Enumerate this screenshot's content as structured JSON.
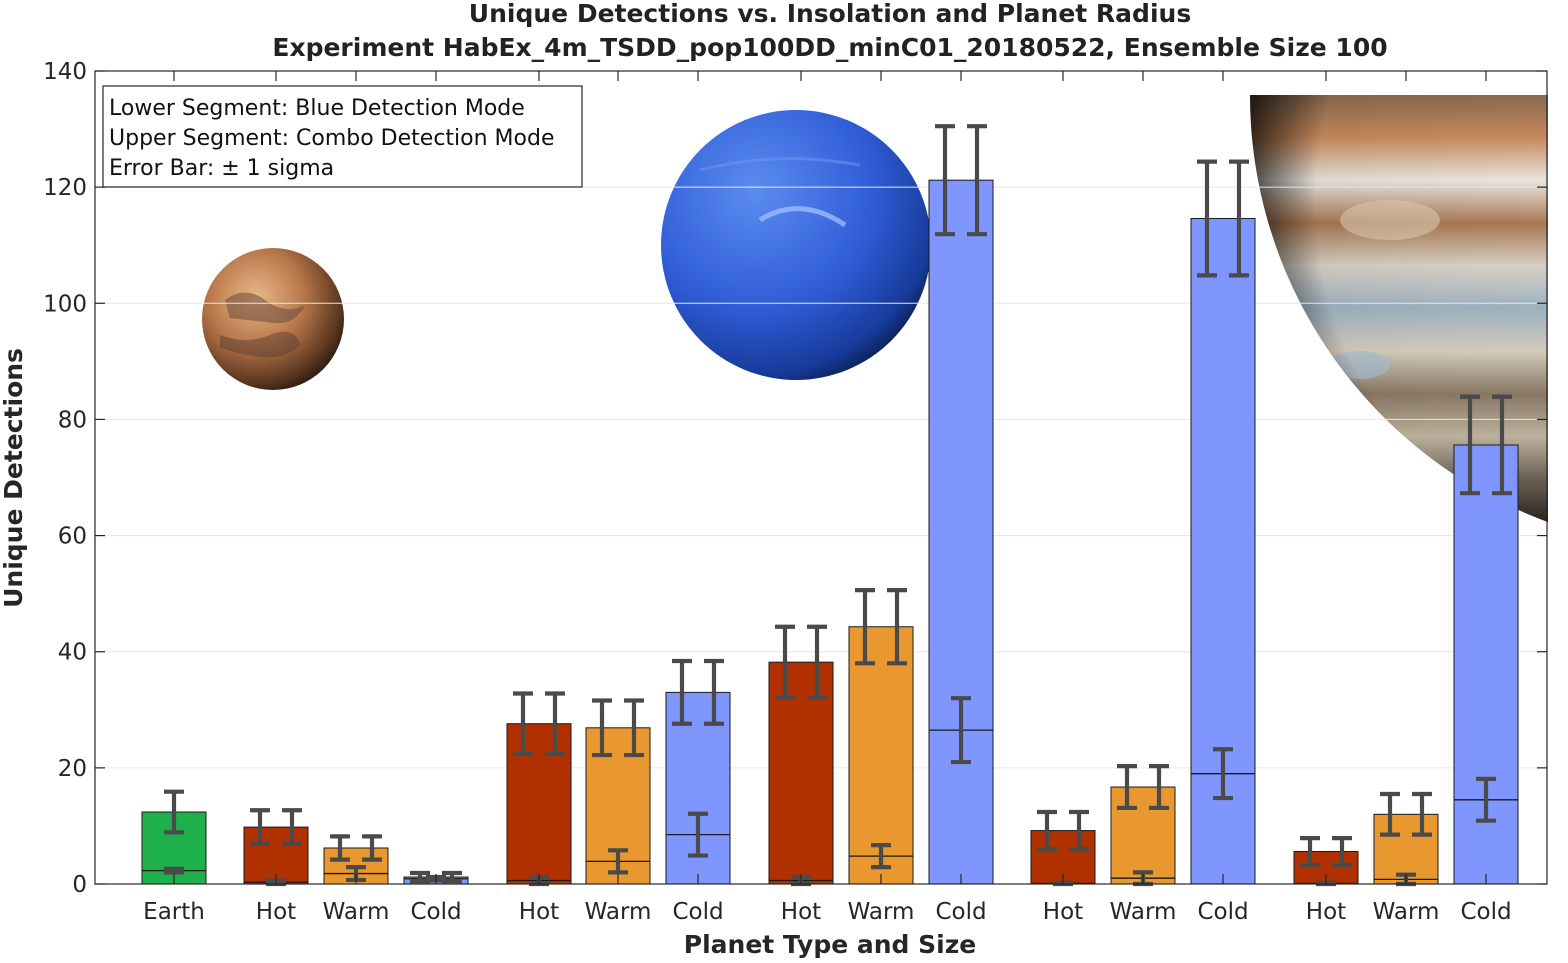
{
  "chart_data": {
    "type": "bar",
    "stacked": true,
    "title": "Unique Detections vs. Insolation and Planet Radius",
    "subtitle": "Experiment HabEx_4m_TSDD_pop100DD_minC01_20180522, Ensemble Size 100",
    "xlabel": "Planet Type and Size",
    "ylabel": "Unique Detections",
    "ylim": [
      0,
      140
    ],
    "yticks": [
      0,
      20,
      40,
      60,
      80,
      100,
      120,
      140
    ],
    "grid": true,
    "legend": {
      "placement": "top-left",
      "lines": [
        "Lower Segment: Blue Detection Mode",
        "Upper Segment: Combo Detection Mode",
        "Error Bar: ± 1 sigma"
      ]
    },
    "colors": {
      "earth": "#1eb04a",
      "hot": "#b03000",
      "warm": "#e8982e",
      "cold": "#7f96ff",
      "errorbar": "#4a4a4a",
      "grid": "#e6e6e6",
      "axis": "#262626"
    },
    "planet_images": [
      "earth-like-rocky-planet",
      "neptune",
      "jupiter"
    ],
    "categories": [
      "Earth",
      "Hot",
      "Warm",
      "Cold",
      "Hot",
      "Warm",
      "Cold",
      "Hot",
      "Warm",
      "Cold",
      "Hot",
      "Warm",
      "Cold",
      "Hot",
      "Warm",
      "Cold"
    ],
    "temperature_class": [
      "earth",
      "hot",
      "warm",
      "cold",
      "hot",
      "warm",
      "cold",
      "hot",
      "warm",
      "cold",
      "hot",
      "warm",
      "cold",
      "hot",
      "warm",
      "cold"
    ],
    "series": [
      {
        "name": "Blue Detection Mode",
        "values": [
          2.3,
          0.3,
          1.8,
          0.9,
          0.6,
          3.9,
          8.5,
          0.6,
          4.8,
          26.5,
          0.1,
          1.0,
          19.0,
          0.1,
          0.8,
          14.5
        ],
        "error": [
          0.3,
          0.3,
          1.1,
          0.3,
          0.6,
          1.9,
          3.6,
          0.6,
          1.9,
          5.5,
          0.1,
          1.0,
          4.2,
          0.1,
          0.8,
          3.6
        ]
      },
      {
        "name": "Combo Detection Mode",
        "values": [
          12.4,
          9.8,
          6.2,
          1.2,
          27.6,
          26.9,
          33.0,
          38.2,
          44.3,
          121.2,
          9.2,
          16.7,
          114.6,
          5.6,
          12.0,
          75.6
        ],
        "error": [
          3.5,
          2.9,
          2.0,
          0.7,
          5.2,
          4.7,
          5.4,
          6.1,
          6.3,
          9.3,
          3.2,
          3.6,
          9.8,
          2.3,
          3.5,
          8.3
        ]
      }
    ]
  }
}
